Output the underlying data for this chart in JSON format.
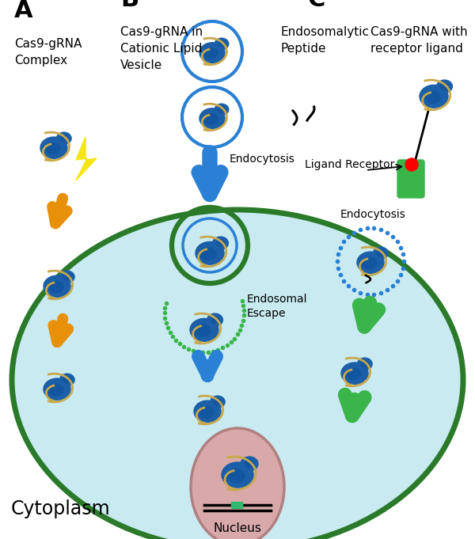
{
  "bg_color": "#ffffff",
  "cell_bg": "#c8eaf0",
  "cell_border": "#2a7a2a",
  "blue_dark": "#1a5fa8",
  "blue_mid": "#2980d4",
  "orange": "#e8900a",
  "green_arrow": "#3ab54a",
  "yellow_bolt": "#f5e516",
  "pink_nucleus": "#d9a8a8",
  "dot_green": "#3ab54a",
  "dot_blue": "#2980d4",
  "title_A": "A",
  "title_B": "B",
  "title_C": "C",
  "label_A": "Cas9-gRNA\nComplex",
  "label_B": "Cas9-gRNA in\nCationic Lipid\nVesicle",
  "label_C_endo": "Endosomalytic\nPeptide",
  "label_C_cas": "Cas9-gRNA with\nreceptor ligand",
  "label_endocytosis_b": "Endocytosis",
  "label_endocytosis_c": "Endocytosis",
  "label_endosomal": "Endosomal\nEscape",
  "label_ligand": "Ligand Receptor",
  "label_nucleus": "Nucleus",
  "label_cytoplasm": "Cytoplasm"
}
